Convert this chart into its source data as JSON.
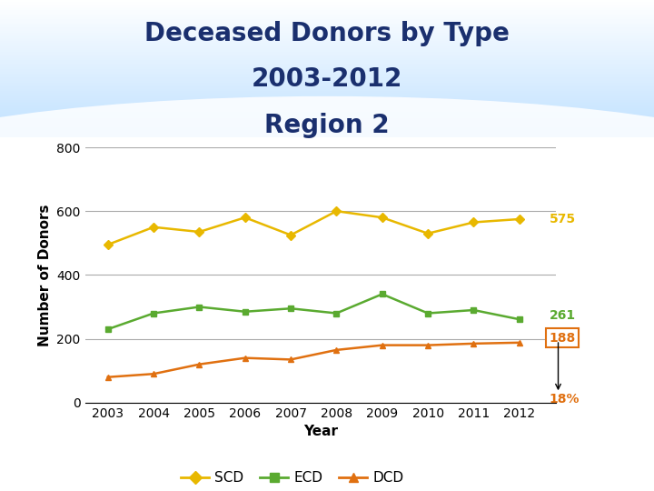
{
  "title_line1": "Deceased Donors by Type",
  "title_line2": "2003-2012",
  "title_line3": "Region 2",
  "title_color": "#1a2f6e",
  "xlabel": "Year",
  "ylabel": "Number of Donors",
  "years": [
    2003,
    2004,
    2005,
    2006,
    2007,
    2008,
    2009,
    2010,
    2011,
    2012
  ],
  "SCD": [
    495,
    550,
    535,
    580,
    525,
    600,
    580,
    530,
    565,
    575
  ],
  "ECD": [
    230,
    280,
    300,
    285,
    295,
    280,
    340,
    280,
    290,
    261
  ],
  "DCD": [
    80,
    90,
    120,
    140,
    135,
    165,
    180,
    180,
    185,
    188
  ],
  "SCD_color": "#e8b800",
  "ECD_color": "#5aaa30",
  "DCD_color": "#e07010",
  "SCD_label": "SCD",
  "ECD_label": "ECD",
  "DCD_label": "DCD",
  "ylim": [
    0,
    800
  ],
  "yticks": [
    0,
    200,
    400,
    600,
    800
  ],
  "annotation_SCD_value": "575",
  "annotation_ECD_value": "261",
  "annotation_DCD_value": "188",
  "annotation_pct": "18%",
  "bg_color": "#ffffff",
  "grid_color": "#aaaaaa",
  "title_fontsize": 20,
  "axis_label_fontsize": 11,
  "tick_fontsize": 10,
  "legend_fontsize": 11
}
